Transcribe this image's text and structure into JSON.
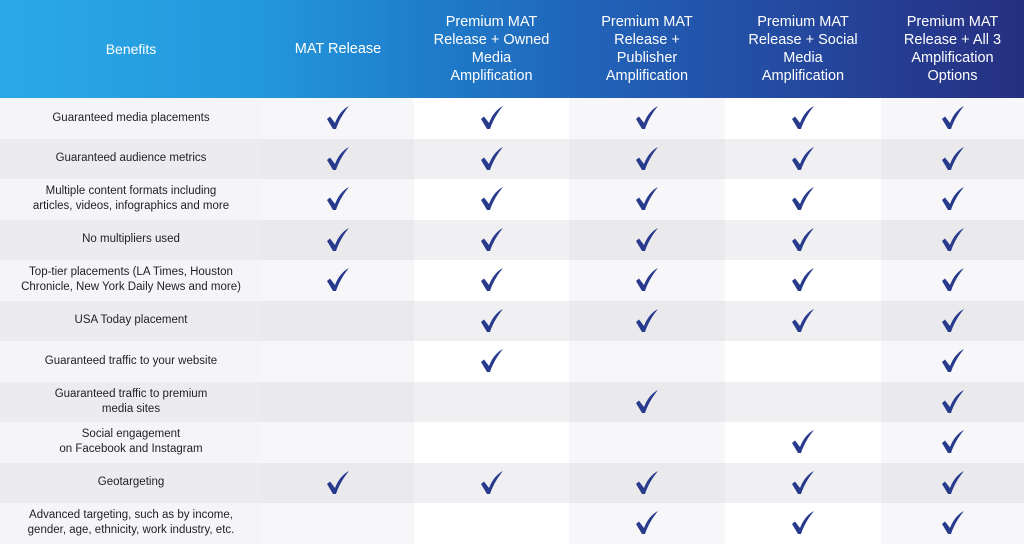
{
  "header": {
    "columns": [
      "Benefits",
      "MAT Release",
      "Premium MAT\nRelease + Owned\nMedia\nAmplification",
      "Premium MAT\nRelease +\nPublisher\nAmplification",
      "Premium MAT\nRelease + Social\nMedia\nAmplification",
      "Premium MAT\nRelease + All 3\nAmplification\nOptions"
    ]
  },
  "check_icon": "checkmark-icon",
  "colors": {
    "check": "#283a8c",
    "header_start": "#2aa9e6",
    "header_end": "#262f80"
  },
  "rows": [
    {
      "label": "Guaranteed media placements",
      "checks": [
        true,
        true,
        true,
        true,
        true
      ]
    },
    {
      "label": "Guaranteed audience metrics",
      "checks": [
        true,
        true,
        true,
        true,
        true
      ]
    },
    {
      "label": "Multiple content formats including\narticles, videos, infographics and more",
      "checks": [
        true,
        true,
        true,
        true,
        true
      ]
    },
    {
      "label": "No multipliers used",
      "checks": [
        true,
        true,
        true,
        true,
        true
      ]
    },
    {
      "label": "Top-tier placements (LA Times, Houston\nChronicle, New York Daily News and more)",
      "checks": [
        true,
        true,
        true,
        true,
        true
      ]
    },
    {
      "label": "USA Today placement",
      "checks": [
        false,
        true,
        true,
        true,
        true
      ]
    },
    {
      "label": "Guaranteed traffic to your website",
      "checks": [
        false,
        true,
        false,
        false,
        true
      ]
    },
    {
      "label": "Guaranteed traffic to premium\nmedia sites",
      "checks": [
        false,
        false,
        true,
        false,
        true
      ]
    },
    {
      "label": "Social engagement\non Facebook and Instagram",
      "checks": [
        false,
        false,
        false,
        true,
        true
      ]
    },
    {
      "label": "Geotargeting",
      "checks": [
        true,
        true,
        true,
        true,
        true
      ]
    },
    {
      "label": "Advanced targeting, such as by income,\ngender, age, ethnicity, work industry, etc.",
      "checks": [
        false,
        false,
        true,
        true,
        true
      ]
    }
  ]
}
